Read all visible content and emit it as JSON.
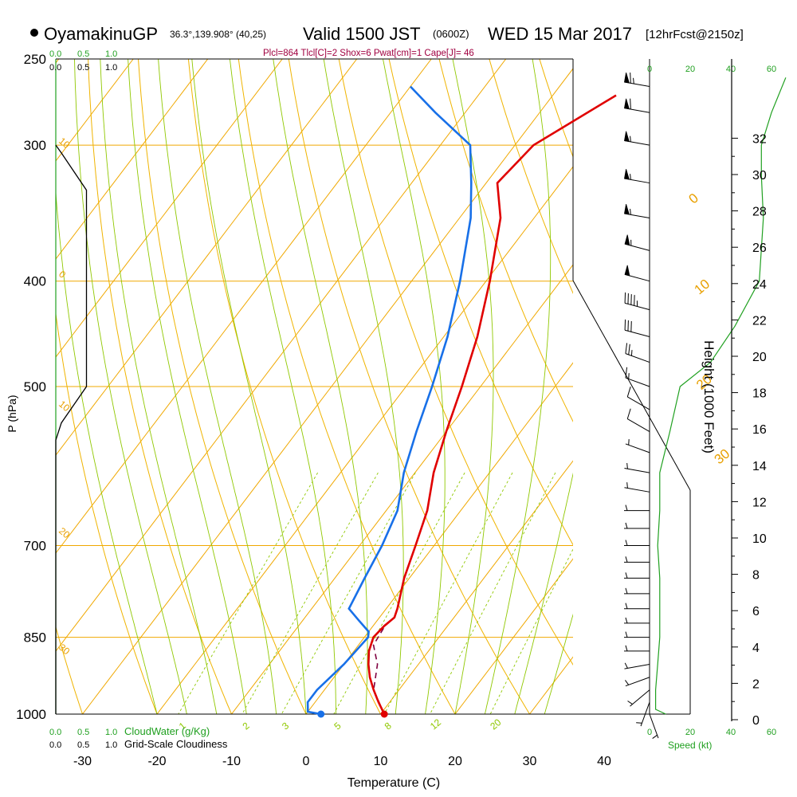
{
  "header": {
    "station": "OyamakinuGP",
    "coords": "36.3°,139.908° (40,25)",
    "valid": "Valid 1500 JST",
    "utc": "(0600Z)",
    "date": "WED 15 Mar 2017",
    "forecast": "[12hrFcst@2150z]",
    "indices": "Plcl=864 Tlcl[C]=2 Shox=6 Pwat[cm]=1 Cape[J]= 46",
    "bullet_color": "#000000"
  },
  "colors": {
    "isobar": "#f0a800",
    "dry_adiabat": "#f0b400",
    "isotherm_label": "#e8a000",
    "moist_adiabat": "#90c800",
    "mixing_ratio": "#90c800",
    "temperature": "#e00000",
    "dewpoint": "#1870e8",
    "parcel": "#800040",
    "wind_speed": "#20a020",
    "cloud": "#000000",
    "indices": "#a00040",
    "green_labels": "#20a020"
  },
  "chart_data": {
    "type": "skew-t",
    "title": "OyamakinuGP Valid 1500 JST (0600Z) WED 15 Mar 2017",
    "xlabel": "Temperature (C)",
    "ylabel": "P (hPa)",
    "right_ylabel": "Height (1000 Feet)",
    "x_ticks": [
      "-30",
      "-20",
      "-10",
      "0",
      "10",
      "20",
      "30",
      "40"
    ],
    "x_tick_values": [
      -30,
      -20,
      -10,
      0,
      10,
      20,
      30,
      40
    ],
    "pressure_ticks": [
      "250",
      "300",
      "400",
      "500",
      "700",
      "850",
      "1000"
    ],
    "pressure_tick_values": [
      250,
      300,
      400,
      500,
      700,
      850,
      1000
    ],
    "height_ticks": [
      "0",
      "2",
      "4",
      "6",
      "8",
      "10",
      "12",
      "14",
      "16",
      "18",
      "20",
      "22",
      "24",
      "26",
      "28",
      "30",
      "32"
    ],
    "height_tick_values": [
      0,
      2,
      4,
      6,
      8,
      10,
      12,
      14,
      16,
      18,
      20,
      22,
      24,
      26,
      28,
      30,
      32
    ],
    "xlim": [
      -34,
      36
    ],
    "plim": [
      250,
      1000
    ],
    "isotherm_labels": [
      {
        "text": "0",
        "t": 0,
        "p": 340
      },
      {
        "text": "10",
        "t": 10,
        "p": 412
      },
      {
        "text": "20",
        "t": 20,
        "p": 504
      },
      {
        "text": "30",
        "t": 30,
        "p": 590
      }
    ],
    "left_isotherm_labels": [
      {
        "text": "10",
        "p": 298
      },
      {
        "text": "0",
        "p": 395
      },
      {
        "text": "10",
        "p": 520
      },
      {
        "text": "20",
        "p": 680
      },
      {
        "text": "30",
        "p": 870
      }
    ],
    "mixing_ratio_labels": [
      "1",
      "2",
      "3",
      "5",
      "8",
      "12",
      "20"
    ],
    "mixing_ratio_values": [
      1,
      2,
      3,
      5,
      8,
      12,
      20
    ],
    "temperature": [
      {
        "p": 1000,
        "t": 10.5
      },
      {
        "p": 975,
        "t": 8.5
      },
      {
        "p": 950,
        "t": 6.6
      },
      {
        "p": 925,
        "t": 4.8
      },
      {
        "p": 900,
        "t": 3.3
      },
      {
        "p": 875,
        "t": 2.0
      },
      {
        "p": 850,
        "t": 1.2
      },
      {
        "p": 830,
        "t": 1.5
      },
      {
        "p": 815,
        "t": 2.0
      },
      {
        "p": 800,
        "t": 1.5
      },
      {
        "p": 750,
        "t": -0.7
      },
      {
        "p": 700,
        "t": -2.5
      },
      {
        "p": 650,
        "t": -4.5
      },
      {
        "p": 600,
        "t": -7.5
      },
      {
        "p": 550,
        "t": -10.0
      },
      {
        "p": 500,
        "t": -12.5
      },
      {
        "p": 450,
        "t": -15.5
      },
      {
        "p": 400,
        "t": -19.5
      },
      {
        "p": 350,
        "t": -24.5
      },
      {
        "p": 325,
        "t": -28.5
      },
      {
        "p": 300,
        "t": -27.5
      },
      {
        "p": 270,
        "t": -21.5
      }
    ],
    "dewpoint": [
      {
        "p": 1000,
        "t": 2.0
      },
      {
        "p": 995,
        "t": 0.0
      },
      {
        "p": 975,
        "t": -1.0
      },
      {
        "p": 950,
        "t": -1.0
      },
      {
        "p": 900,
        "t": 0.0
      },
      {
        "p": 850,
        "t": 0.5
      },
      {
        "p": 840,
        "t": 0.0
      },
      {
        "p": 820,
        "t": -2.5
      },
      {
        "p": 800,
        "t": -5.0
      },
      {
        "p": 750,
        "t": -6.0
      },
      {
        "p": 700,
        "t": -7.0
      },
      {
        "p": 650,
        "t": -8.5
      },
      {
        "p": 600,
        "t": -11.5
      },
      {
        "p": 550,
        "t": -14.0
      },
      {
        "p": 500,
        "t": -16.5
      },
      {
        "p": 450,
        "t": -19.5
      },
      {
        "p": 400,
        "t": -23.5
      },
      {
        "p": 350,
        "t": -28.5
      },
      {
        "p": 325,
        "t": -32.0
      },
      {
        "p": 300,
        "t": -36.0
      },
      {
        "p": 280,
        "t": -44.0
      },
      {
        "p": 265,
        "t": -50.0
      }
    ],
    "parcel": [
      {
        "p": 1000,
        "t": 10.5
      },
      {
        "p": 950,
        "t": 6.6
      },
      {
        "p": 900,
        "t": 4.5
      },
      {
        "p": 864,
        "t": 2.0
      },
      {
        "p": 830,
        "t": 1.6
      },
      {
        "p": 815,
        "t": 2.0
      }
    ],
    "surface_temperature": {
      "p": 1000,
      "t": 10.5
    },
    "surface_dewpoint": {
      "p": 1000,
      "t": 2.0
    },
    "cloud_axis": {
      "labels": [
        "0.0",
        "0.5",
        "1.0"
      ],
      "values": [
        0,
        0.5,
        1.0
      ],
      "bottom_labels": [
        "0.0",
        "0.5",
        "1.0"
      ],
      "cloudwater_label": "CloudWater (g/Kg)",
      "cloudiness_label": "Grid-Scale Cloudiness"
    },
    "cloudiness": [
      {
        "p": 1000,
        "v": 0.0
      },
      {
        "p": 560,
        "v": 0.0
      },
      {
        "p": 540,
        "v": 0.1
      },
      {
        "p": 500,
        "v": 0.55
      },
      {
        "p": 330,
        "v": 0.55
      },
      {
        "p": 305,
        "v": 0.1
      },
      {
        "p": 300,
        "v": 0.0
      }
    ],
    "wind_speed_axis": {
      "top_labels": [
        "0",
        "20",
        "40",
        "60"
      ],
      "bottom_labels": [
        "0",
        "20",
        "40",
        "60"
      ],
      "values": [
        0,
        20,
        40,
        60
      ],
      "label": "Speed (kt)"
    },
    "wind_speed": [
      {
        "p": 1000,
        "v": 8
      },
      {
        "p": 990,
        "v": 3
      },
      {
        "p": 950,
        "v": 3
      },
      {
        "p": 900,
        "v": 4
      },
      {
        "p": 850,
        "v": 5
      },
      {
        "p": 800,
        "v": 5
      },
      {
        "p": 750,
        "v": 5
      },
      {
        "p": 700,
        "v": 4
      },
      {
        "p": 650,
        "v": 5
      },
      {
        "p": 600,
        "v": 5
      },
      {
        "p": 550,
        "v": 10
      },
      {
        "p": 500,
        "v": 15
      },
      {
        "p": 475,
        "v": 30
      },
      {
        "p": 440,
        "v": 42
      },
      {
        "p": 400,
        "v": 54
      },
      {
        "p": 350,
        "v": 56
      },
      {
        "p": 320,
        "v": 55
      },
      {
        "p": 300,
        "v": 55
      },
      {
        "p": 280,
        "v": 60
      },
      {
        "p": 260,
        "v": 67
      }
    ],
    "wind_barbs": [
      {
        "p": 1000,
        "dir": 160,
        "spd": 5
      },
      {
        "p": 975,
        "dir": 200,
        "spd": 5
      },
      {
        "p": 950,
        "dir": 230,
        "spd": 5
      },
      {
        "p": 925,
        "dir": 250,
        "spd": 5
      },
      {
        "p": 900,
        "dir": 260,
        "spd": 5
      },
      {
        "p": 875,
        "dir": 270,
        "spd": 5
      },
      {
        "p": 850,
        "dir": 270,
        "spd": 5
      },
      {
        "p": 825,
        "dir": 270,
        "spd": 5
      },
      {
        "p": 800,
        "dir": 270,
        "spd": 5
      },
      {
        "p": 775,
        "dir": 270,
        "spd": 5
      },
      {
        "p": 750,
        "dir": 270,
        "spd": 5
      },
      {
        "p": 725,
        "dir": 270,
        "spd": 5
      },
      {
        "p": 700,
        "dir": 270,
        "spd": 5
      },
      {
        "p": 675,
        "dir": 270,
        "spd": 5
      },
      {
        "p": 650,
        "dir": 270,
        "spd": 5
      },
      {
        "p": 625,
        "dir": 280,
        "spd": 5
      },
      {
        "p": 600,
        "dir": 280,
        "spd": 5
      },
      {
        "p": 575,
        "dir": 290,
        "spd": 5
      },
      {
        "p": 550,
        "dir": 300,
        "spd": 10
      },
      {
        "p": 525,
        "dir": 300,
        "spd": 10
      },
      {
        "p": 500,
        "dir": 290,
        "spd": 15
      },
      {
        "p": 475,
        "dir": 290,
        "spd": 25
      },
      {
        "p": 450,
        "dir": 285,
        "spd": 30
      },
      {
        "p": 425,
        "dir": 285,
        "spd": 45
      },
      {
        "p": 400,
        "dir": 285,
        "spd": 50
      },
      {
        "p": 375,
        "dir": 285,
        "spd": 55
      },
      {
        "p": 350,
        "dir": 280,
        "spd": 55
      },
      {
        "p": 325,
        "dir": 280,
        "spd": 55
      },
      {
        "p": 300,
        "dir": 280,
        "spd": 55
      },
      {
        "p": 280,
        "dir": 280,
        "spd": 60
      },
      {
        "p": 265,
        "dir": 280,
        "spd": 65
      }
    ]
  }
}
